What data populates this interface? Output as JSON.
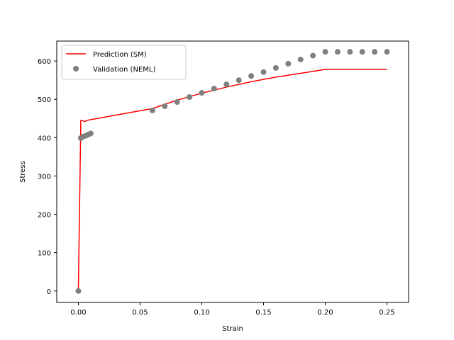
{
  "chart_data": {
    "type": "line",
    "xlabel": "Strain",
    "ylabel": "Stress",
    "xlim": [
      -0.0175,
      0.2675
    ],
    "ylim": [
      -30,
      652
    ],
    "xticks": [
      0.0,
      0.05,
      0.1,
      0.15,
      0.2,
      0.25
    ],
    "xtick_labels": [
      "0.00",
      "0.05",
      "0.10",
      "0.15",
      "0.20",
      "0.25"
    ],
    "yticks": [
      0,
      100,
      200,
      300,
      400,
      500,
      600
    ],
    "ytick_labels": [
      "0",
      "100",
      "200",
      "300",
      "400",
      "500",
      "600"
    ],
    "grid": false,
    "legend_position": "top-left",
    "series": [
      {
        "name": "Prediction (SM)",
        "kind": "line",
        "color": "#ff0000",
        "x": [
          0.0,
          0.002,
          0.003,
          0.005,
          0.007,
          0.01,
          0.06,
          0.08,
          0.1,
          0.12,
          0.14,
          0.16,
          0.18,
          0.2,
          0.25
        ],
        "y": [
          0,
          445,
          445,
          442,
          445,
          447,
          476,
          498,
          516,
          532,
          546,
          558,
          568,
          578,
          578
        ]
      },
      {
        "name": "Validation (NEML)",
        "kind": "scatter",
        "color": "#808080",
        "x": [
          0.0,
          0.002,
          0.004,
          0.006,
          0.008,
          0.01,
          0.06,
          0.07,
          0.08,
          0.09,
          0.1,
          0.11,
          0.12,
          0.13,
          0.14,
          0.15,
          0.16,
          0.17,
          0.18,
          0.19,
          0.2,
          0.21,
          0.22,
          0.23,
          0.24,
          0.25
        ],
        "y": [
          0,
          399,
          403,
          405,
          408,
          411,
          471,
          482,
          493,
          506,
          517,
          528,
          539,
          550,
          561,
          571,
          582,
          593,
          604,
          614,
          624,
          624,
          624,
          624,
          624,
          624
        ]
      }
    ]
  }
}
